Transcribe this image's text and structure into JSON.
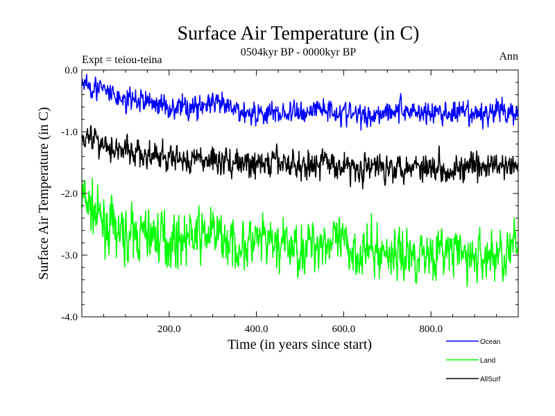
{
  "chart_data": {
    "type": "line",
    "title": "Surface Air Temperature (in C)",
    "subtitle": "0504kyr BP - 0000kyr BP",
    "left_label": "Expt = teiou-teina",
    "right_label": "Ann",
    "xlabel": "Time (in years since start)",
    "ylabel": "Surface Air Temperature (in C)",
    "xlim": [
      0,
      1000
    ],
    "ylim": [
      -4.0,
      0.0
    ],
    "x_ticks": [
      {
        "value": 200,
        "label": "200.0"
      },
      {
        "value": 400,
        "label": "400.0"
      },
      {
        "value": 600,
        "label": "600.0"
      },
      {
        "value": 800,
        "label": "800.0"
      }
    ],
    "y_ticks": [
      {
        "value": 0.0,
        "label": "0.0"
      },
      {
        "value": -1.0,
        "label": "-1.0"
      },
      {
        "value": -2.0,
        "label": "-2.0"
      },
      {
        "value": -3.0,
        "label": "-3.0"
      },
      {
        "value": -4.0,
        "label": "-4.0"
      }
    ],
    "grid": false,
    "legend_position": "bottom-right",
    "series": [
      {
        "name": "Ocean",
        "color": "#0000ff",
        "x": [
          0,
          50,
          100,
          150,
          200,
          250,
          300,
          350,
          400,
          450,
          500,
          550,
          600,
          650,
          700,
          750,
          800,
          850,
          900,
          950,
          1000
        ],
        "values": [
          -0.15,
          -0.35,
          -0.5,
          -0.5,
          -0.6,
          -0.6,
          -0.55,
          -0.65,
          -0.7,
          -0.7,
          -0.7,
          -0.6,
          -0.7,
          -0.75,
          -0.65,
          -0.65,
          -0.7,
          -0.7,
          -0.75,
          -0.65,
          -0.7
        ]
      },
      {
        "name": "Land",
        "color": "#00ff00",
        "x": [
          0,
          50,
          100,
          150,
          200,
          250,
          300,
          350,
          400,
          450,
          500,
          550,
          600,
          650,
          700,
          750,
          800,
          850,
          900,
          950,
          1000
        ],
        "values": [
          -2.05,
          -2.5,
          -2.7,
          -2.65,
          -2.75,
          -2.7,
          -2.65,
          -2.85,
          -2.8,
          -2.85,
          -2.9,
          -2.75,
          -2.85,
          -2.95,
          -2.95,
          -3.0,
          -2.95,
          -2.95,
          -3.05,
          -3.0,
          -2.9
        ]
      },
      {
        "name": "AllSurf",
        "color": "#000000",
        "x": [
          0,
          50,
          100,
          150,
          200,
          250,
          300,
          350,
          400,
          450,
          500,
          550,
          600,
          650,
          700,
          750,
          800,
          850,
          900,
          950,
          1000
        ],
        "values": [
          -1.0,
          -1.2,
          -1.3,
          -1.4,
          -1.45,
          -1.45,
          -1.45,
          -1.5,
          -1.55,
          -1.5,
          -1.55,
          -1.5,
          -1.55,
          -1.6,
          -1.55,
          -1.55,
          -1.55,
          -1.6,
          -1.6,
          -1.55,
          -1.6
        ]
      }
    ],
    "noise": {
      "seed": 7,
      "samples": 1000,
      "amplitude": [
        0.2,
        0.42,
        0.24
      ]
    }
  }
}
